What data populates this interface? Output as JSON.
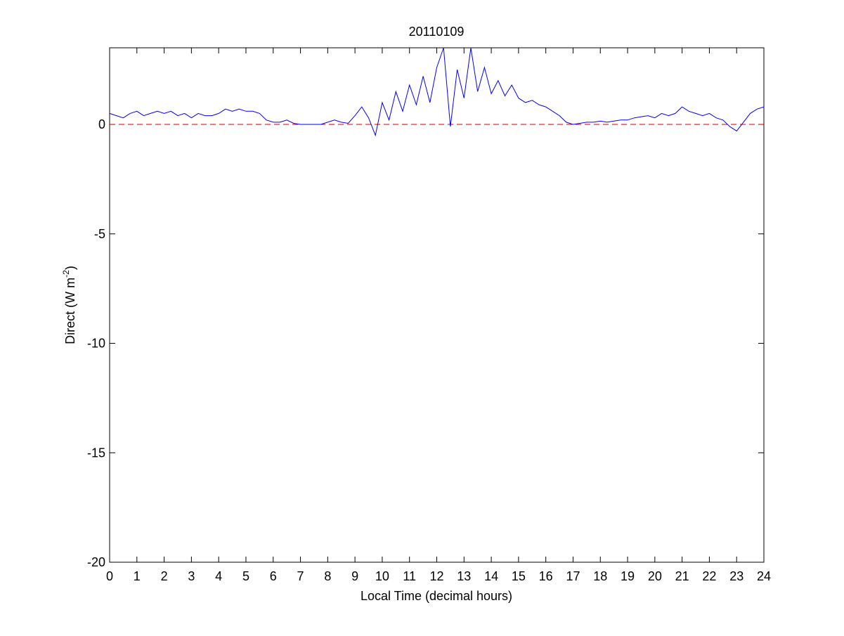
{
  "chart_data": {
    "type": "line",
    "title": "20110109",
    "xlabel": "Local Time (decimal hours)",
    "ylabel": {
      "text": "Direct (W m",
      "superscript": "-2",
      "suffix": ")"
    },
    "x": [
      0,
      0.25,
      0.5,
      0.75,
      1,
      1.25,
      1.5,
      1.75,
      2,
      2.25,
      2.5,
      2.75,
      3,
      3.25,
      3.5,
      3.75,
      4,
      4.25,
      4.5,
      4.75,
      5,
      5.25,
      5.5,
      5.75,
      6,
      6.25,
      6.5,
      6.75,
      7,
      7.25,
      7.5,
      7.75,
      8,
      8.25,
      8.5,
      8.75,
      9,
      9.25,
      9.5,
      9.75,
      10,
      10.25,
      10.5,
      10.75,
      11,
      11.25,
      11.5,
      11.75,
      12,
      12.25,
      12.5,
      12.75,
      13,
      13.25,
      13.5,
      13.75,
      14,
      14.25,
      14.5,
      14.75,
      15,
      15.25,
      15.5,
      15.75,
      16,
      16.25,
      16.5,
      16.75,
      17,
      17.25,
      17.5,
      17.75,
      18,
      18.25,
      18.5,
      18.75,
      19,
      19.25,
      19.5,
      19.75,
      20,
      20.25,
      20.5,
      20.75,
      21,
      21.25,
      21.5,
      21.75,
      22,
      22.25,
      22.5,
      22.75,
      23,
      23.25,
      23.5,
      23.75,
      24
    ],
    "series": [
      {
        "color": "#0000ff",
        "values": [
          0.5,
          0.4,
          0.3,
          0.5,
          0.6,
          0.4,
          0.5,
          0.6,
          0.5,
          0.6,
          0.4,
          0.5,
          0.3,
          0.5,
          0.4,
          0.4,
          0.5,
          0.7,
          0.6,
          0.7,
          0.6,
          0.6,
          0.5,
          0.2,
          0.1,
          0.1,
          0.2,
          0.05,
          0,
          0,
          0,
          0,
          0.1,
          0.2,
          0.1,
          0.05,
          0.4,
          0.8,
          0.3,
          -0.5,
          1.0,
          0.2,
          1.5,
          0.6,
          1.8,
          0.9,
          2.2,
          1.0,
          2.6,
          3.5,
          -0.1,
          2.5,
          1.2,
          3.5,
          1.5,
          2.6,
          1.4,
          2.0,
          1.3,
          1.8,
          1.2,
          1.0,
          1.1,
          0.9,
          0.8,
          0.6,
          0.4,
          0.1,
          0,
          0.05,
          0.1,
          0.1,
          0.15,
          0.1,
          0.15,
          0.2,
          0.2,
          0.3,
          0.35,
          0.4,
          0.3,
          0.5,
          0.4,
          0.5,
          0.8,
          0.6,
          0.5,
          0.4,
          0.5,
          0.3,
          0.2,
          -0.1,
          -0.3,
          0.1,
          0.5,
          0.7,
          0.8
        ]
      }
    ],
    "reference_line": {
      "value": 0,
      "color": "#cc0000",
      "dashed": true
    },
    "xlim": [
      0,
      24
    ],
    "xticks": [
      0,
      1,
      2,
      3,
      4,
      5,
      6,
      7,
      8,
      9,
      10,
      11,
      12,
      13,
      14,
      15,
      16,
      17,
      18,
      19,
      20,
      21,
      22,
      23,
      24
    ],
    "ylim": [
      -20,
      3.5
    ],
    "yticks": [
      -20,
      -15,
      -10,
      -5,
      0
    ],
    "grid": false
  }
}
